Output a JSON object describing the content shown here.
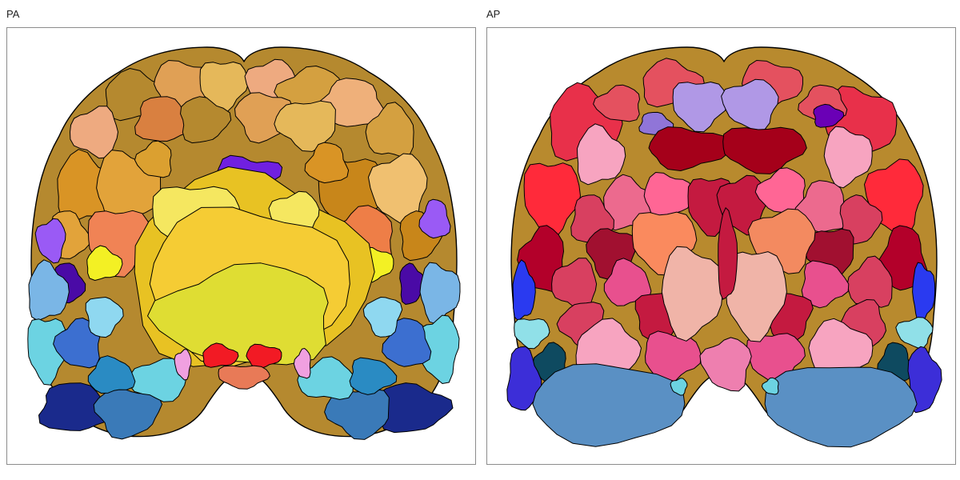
{
  "panels": {
    "left": {
      "title": "PA",
      "palette": {
        "outer_top": [
          "#b5892f",
          "#e0a055",
          "#e5b85a",
          "#eeaa80",
          "#d4a040",
          "#efb07a",
          "#d98040"
        ],
        "inner_gold": [
          "#d99425",
          "#e2a33a",
          "#c8861a",
          "#f0c070",
          "#dba030"
        ],
        "orange": [
          "#f08355",
          "#ee7e47",
          "#f5a060"
        ],
        "yellow_core": [
          "#f5e760",
          "#e8c223",
          "#f5cc34",
          "#dfdd33",
          "#f3f024"
        ],
        "purple": [
          "#7020e0",
          "#9a5af5",
          "#4a0aa6"
        ],
        "blue": [
          "#7ab6e6",
          "#5d9bdf",
          "#3c6fd0",
          "#2a8bc3",
          "#6cd3e2",
          "#1a2a8c",
          "#3a7ab8",
          "#8fd8f0"
        ],
        "accent": [
          "#f21a24",
          "#f0a0e0",
          "#e87a57"
        ]
      }
    },
    "right": {
      "title": "AP",
      "palette": {
        "top": [
          "#e4515f",
          "#b098e6",
          "#a5001a",
          "#ff6695",
          "#6a00b6",
          "#9075d8"
        ],
        "reds": [
          "#c41a40",
          "#e8304a",
          "#a11030",
          "#d84060",
          "#ff2a3a",
          "#b3002a"
        ],
        "pinks": [
          "#f7a4c0",
          "#ec6a8e",
          "#e8508e",
          "#f0b4a8",
          "#f08a8e",
          "#ee7faf"
        ],
        "orange": [
          "#fa8a5e",
          "#f38a60"
        ],
        "outer": [
          "#b88a2e",
          "#2a3af0",
          "#3c2ed8",
          "#90e0e8",
          "#0e4a60"
        ],
        "lower": [
          "#5a90c4",
          "#4a80b8",
          "#6cd3e2"
        ]
      }
    }
  }
}
